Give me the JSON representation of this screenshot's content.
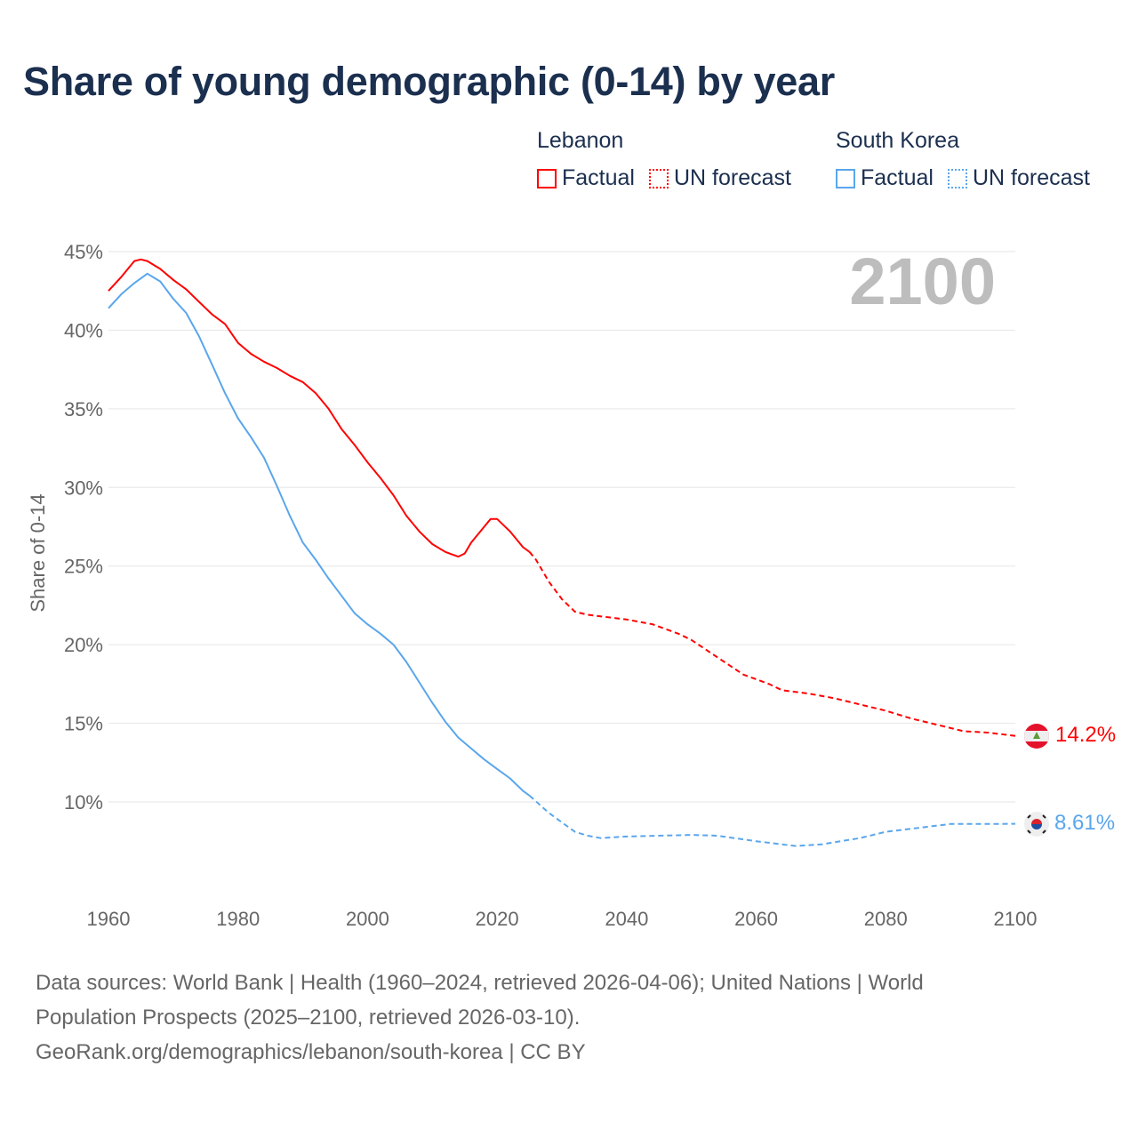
{
  "title": "Share of young demographic (0-14) by year",
  "year_label": "2100",
  "legend": [
    {
      "name": "Lebanon",
      "factual": "Factual",
      "forecast": "UN forecast",
      "color": "#ff0000"
    },
    {
      "name": "South Korea",
      "factual": "Factual",
      "forecast": "UN forecast",
      "color": "#5aa6ec"
    }
  ],
  "footer": {
    "line1": "Data sources: World Bank | Health (1960–2024, retrieved 2026-04-06); United Nations | World",
    "line2": "Population Prospects (2025–2100, retrieved 2026-03-10).",
    "line3": "GeoRank.org/demographics/lebanon/south-korea | CC BY"
  },
  "chart_data": {
    "type": "line",
    "title": "Share of young demographic (0-14) by year",
    "xlabel": "",
    "ylabel": "Share of 0-14",
    "xlim": [
      1960,
      2100
    ],
    "ylim": [
      5,
      45
    ],
    "xticks": [
      "1960",
      "1980",
      "2000",
      "2020",
      "2040",
      "2060",
      "2080",
      "2100"
    ],
    "yticks": [
      "10%",
      "15%",
      "20%",
      "25%",
      "30%",
      "35%",
      "40%",
      "45%"
    ],
    "end_labels": [
      "14.2%",
      "8.61%"
    ],
    "series": [
      {
        "name": "Lebanon",
        "kind": "factual",
        "color": "#ff0000",
        "x": [
          1960,
          1962,
          1964,
          1965,
          1966,
          1968,
          1970,
          1972,
          1974,
          1976,
          1978,
          1980,
          1982,
          1984,
          1986,
          1988,
          1990,
          1992,
          1994,
          1996,
          1998,
          2000,
          2002,
          2004,
          2006,
          2008,
          2010,
          2012,
          2014,
          2015,
          2016,
          2018,
          2019,
          2020,
          2022,
          2024,
          2025
        ],
        "y": [
          42.5,
          43.4,
          44.4,
          44.5,
          44.4,
          43.9,
          43.2,
          42.6,
          41.8,
          41.0,
          40.4,
          39.2,
          38.5,
          38.0,
          37.6,
          37.1,
          36.7,
          36.0,
          35.0,
          33.7,
          32.7,
          31.6,
          30.6,
          29.5,
          28.2,
          27.2,
          26.4,
          25.9,
          25.6,
          25.8,
          26.5,
          27.5,
          28.0,
          28.0,
          27.2,
          26.2,
          25.9
        ]
      },
      {
        "name": "Lebanon",
        "kind": "forecast",
        "color": "#ff0000",
        "x": [
          2025,
          2026,
          2028,
          2030,
          2032,
          2034,
          2040,
          2044,
          2048,
          2050,
          2054,
          2058,
          2062,
          2064,
          2068,
          2072,
          2076,
          2080,
          2084,
          2088,
          2092,
          2096,
          2100
        ],
        "y": [
          25.9,
          25.4,
          24.0,
          22.9,
          22.1,
          21.9,
          21.6,
          21.3,
          20.7,
          20.3,
          19.2,
          18.1,
          17.5,
          17.1,
          16.9,
          16.6,
          16.2,
          15.8,
          15.3,
          14.9,
          14.5,
          14.4,
          14.2
        ]
      },
      {
        "name": "South Korea",
        "kind": "factual",
        "color": "#5aa6ec",
        "x": [
          1960,
          1962,
          1964,
          1966,
          1968,
          1970,
          1972,
          1974,
          1976,
          1978,
          1980,
          1982,
          1984,
          1986,
          1988,
          1990,
          1992,
          1994,
          1996,
          1998,
          2000,
          2002,
          2004,
          2006,
          2008,
          2010,
          2012,
          2014,
          2016,
          2018,
          2020,
          2022,
          2024,
          2025
        ],
        "y": [
          41.4,
          42.3,
          43.0,
          43.6,
          43.1,
          42.0,
          41.1,
          39.6,
          37.8,
          36.0,
          34.4,
          33.2,
          31.9,
          30.1,
          28.2,
          26.5,
          25.4,
          24.2,
          23.1,
          22.0,
          21.3,
          20.7,
          20.0,
          18.9,
          17.6,
          16.3,
          15.1,
          14.1,
          13.4,
          12.7,
          12.1,
          11.5,
          10.7,
          10.4
        ]
      },
      {
        "name": "South Korea",
        "kind": "forecast",
        "color": "#5aa6ec",
        "x": [
          2025,
          2028,
          2030,
          2032,
          2034,
          2036,
          2040,
          2050,
          2054,
          2060,
          2066,
          2070,
          2076,
          2080,
          2084,
          2090,
          2096,
          2100
        ],
        "y": [
          10.4,
          9.3,
          8.7,
          8.1,
          7.85,
          7.7,
          7.8,
          7.9,
          7.85,
          7.5,
          7.2,
          7.3,
          7.7,
          8.1,
          8.3,
          8.6,
          8.6,
          8.61
        ]
      }
    ]
  }
}
